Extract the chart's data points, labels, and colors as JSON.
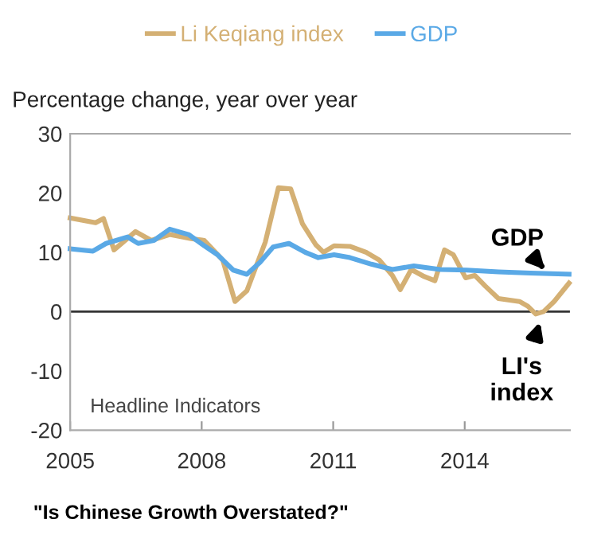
{
  "chart_data": {
    "type": "line",
    "ylabel": "Percentage change, year over year",
    "series": [
      {
        "name": "Li Keqiang index",
        "color": "#d4b074",
        "x": [
          2005.0,
          2005.58,
          2005.76,
          2006.0,
          2006.49,
          2006.85,
          2007.27,
          2007.76,
          2008.06,
          2008.48,
          2008.76,
          2009.03,
          2009.45,
          2009.75,
          2010.03,
          2010.3,
          2010.6,
          2010.78,
          2011.02,
          2011.38,
          2011.75,
          2012.05,
          2012.35,
          2012.53,
          2012.78,
          2013.08,
          2013.32,
          2013.54,
          2013.74,
          2014.02,
          2014.23,
          2014.47,
          2014.77,
          2015.25,
          2015.44,
          2015.62,
          2015.8,
          2016.04,
          2016.38
        ],
        "values": [
          15.8,
          15.0,
          15.7,
          10.4,
          13.5,
          12.0,
          13.0,
          12.3,
          12.0,
          8.7,
          1.7,
          3.5,
          11.7,
          20.9,
          20.7,
          14.8,
          11.3,
          10.0,
          11.1,
          11.0,
          10.0,
          8.7,
          6.1,
          3.7,
          7.1,
          5.9,
          5.2,
          10.4,
          9.6,
          5.7,
          6.1,
          4.3,
          2.2,
          1.7,
          0.9,
          -0.4,
          0,
          1.7,
          4.8
        ]
      },
      {
        "name": "GDP",
        "color": "#5aa9e6",
        "x": [
          2005.0,
          2005.52,
          2005.82,
          2006.31,
          2006.55,
          2006.91,
          2007.27,
          2007.7,
          2008.06,
          2008.36,
          2008.72,
          2009.03,
          2009.33,
          2009.63,
          2009.99,
          2010.36,
          2010.66,
          2011.02,
          2011.38,
          2011.87,
          2012.35,
          2012.84,
          2013.44,
          2014.04,
          2014.77,
          2015.5,
          2016.38
        ],
        "values": [
          10.6,
          10.2,
          11.5,
          12.6,
          11.5,
          12.0,
          13.9,
          13.0,
          11.1,
          9.6,
          7.0,
          6.3,
          8.3,
          10.9,
          11.5,
          10.0,
          9.1,
          9.6,
          9.1,
          8.0,
          7.1,
          7.7,
          7.1,
          7.0,
          6.7,
          6.5,
          6.3
        ]
      }
    ],
    "xlim": [
      2005,
      2016.4
    ],
    "xticks": [
      2005,
      2008,
      2011,
      2014
    ],
    "ylim": [
      -20,
      30
    ],
    "yticks": [
      30,
      20,
      10,
      0,
      -10,
      -20
    ],
    "ref_lines": [
      {
        "axis": "y",
        "value": 0,
        "color": "#333333"
      }
    ],
    "annotations": [
      "Headline Indicators",
      {
        "text": "GDP",
        "x": 2015.9,
        "y": 6.5
      },
      {
        "text": "LI's\nindex",
        "x": 2015.75,
        "y": -1
      },
      "\"Is Chinese Growth Overstated?\""
    ],
    "legend": "top",
    "grid": false,
    "marker": "none",
    "line_style": "solid"
  }
}
